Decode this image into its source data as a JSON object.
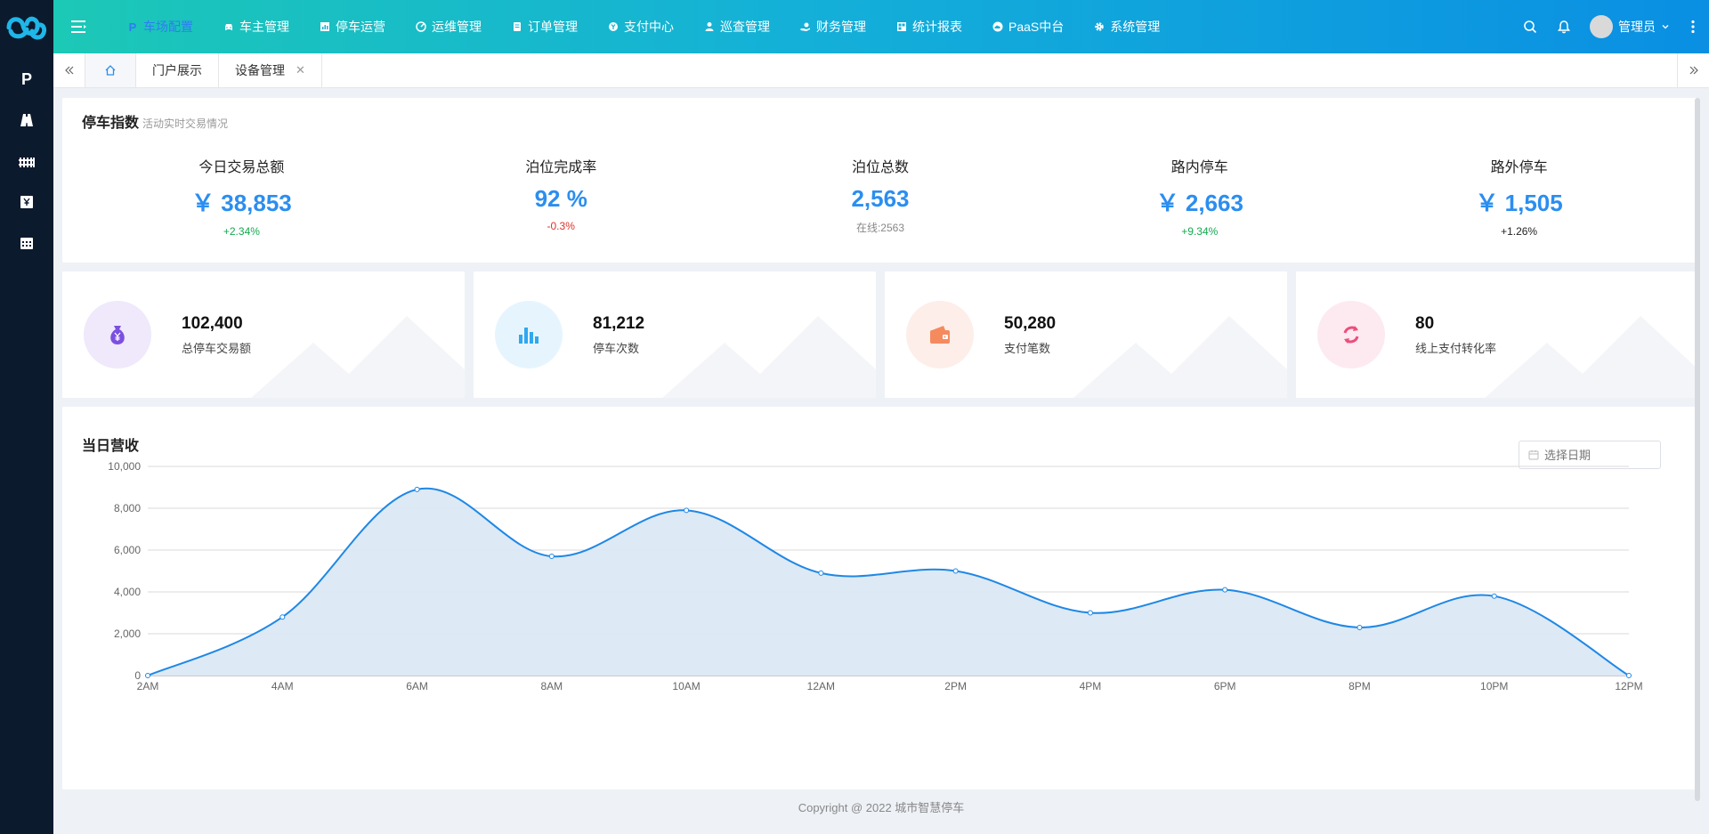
{
  "header": {
    "nav": [
      {
        "label": "车场配置",
        "icon": "parking-p-icon",
        "active": true
      },
      {
        "label": "车主管理",
        "icon": "car-icon"
      },
      {
        "label": "停车运营",
        "icon": "chart-icon"
      },
      {
        "label": "运维管理",
        "icon": "gauge-icon"
      },
      {
        "label": "订单管理",
        "icon": "document-icon"
      },
      {
        "label": "支付中心",
        "icon": "yuan-coin-icon"
      },
      {
        "label": "巡查管理",
        "icon": "inspector-icon"
      },
      {
        "label": "财务管理",
        "icon": "hand-coin-icon"
      },
      {
        "label": "统计报表",
        "icon": "report-icon"
      },
      {
        "label": "PaaS中台",
        "icon": "cloud-icon"
      },
      {
        "label": "系统管理",
        "icon": "gear-icon"
      }
    ],
    "user": "管理员"
  },
  "sidebar": {
    "items": [
      "parking-p-icon",
      "road-icon",
      "fence-icon",
      "yuan-ticket-icon",
      "calendar-icon"
    ],
    "p_label": "P"
  },
  "tabs": {
    "items": [
      {
        "label": "门户展示"
      },
      {
        "label": "设备管理",
        "closable": true
      }
    ]
  },
  "stats": {
    "title": "停车指数",
    "subtitle": "活动实时交易情况",
    "items": [
      {
        "label": "今日交易总额",
        "value": "￥ 38,853",
        "change": "+2.34%",
        "tone": "up"
      },
      {
        "label": "泊位完成率",
        "value": "92 %",
        "change": "-0.3%",
        "tone": "down"
      },
      {
        "label": "泊位总数",
        "value": "2,563",
        "change": "在线:2563",
        "tone": "grey"
      },
      {
        "label": "路内停车",
        "value": "￥ 2,663",
        "change": "+9.34%",
        "tone": "up"
      },
      {
        "label": "路外停车",
        "value": "￥ 1,505",
        "change": "+1.26%",
        "tone": "black"
      }
    ]
  },
  "kpis": [
    {
      "value": "102,400",
      "label": "总停车交易额",
      "icon": "money-bag-icon",
      "bg": "#efe9fb",
      "fg": "#7b4fe0"
    },
    {
      "value": "81,212",
      "label": "停车次数",
      "icon": "bar-chart-icon",
      "bg": "#e6f5fd",
      "fg": "#2fa8ef"
    },
    {
      "value": "50,280",
      "label": "支付笔数",
      "icon": "wallet-icon",
      "bg": "#fdeee9",
      "fg": "#f58a5f"
    },
    {
      "value": "80",
      "label": "线上支付转化率",
      "icon": "refresh-icon",
      "bg": "#fdeaf0",
      "fg": "#ee4d7c"
    }
  ],
  "revenue": {
    "title": "当日营收",
    "date_placeholder": "选择日期"
  },
  "chart_data": {
    "type": "area",
    "title": "当日营收",
    "categories": [
      "2AM",
      "4AM",
      "6AM",
      "8AM",
      "10AM",
      "12AM",
      "2PM",
      "4PM",
      "6PM",
      "8PM",
      "10PM",
      "12PM"
    ],
    "values": [
      0,
      2800,
      8900,
      5700,
      7900,
      4900,
      5000,
      3000,
      4100,
      2300,
      3800,
      0
    ],
    "ylim": [
      0,
      10000
    ],
    "yticks": [
      "0",
      "2,000",
      "4,000",
      "6,000",
      "8,000",
      "10,000"
    ],
    "grid": true,
    "colors": {
      "line": "#1e88e5",
      "fill": "#dce8f5"
    }
  },
  "footer": "Copyright @ 2022 城市智慧停车"
}
